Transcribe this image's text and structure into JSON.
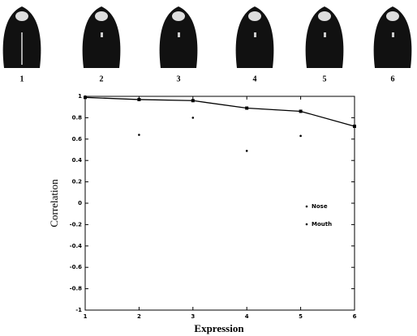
{
  "images": {
    "labels": [
      "1",
      "2",
      "3",
      "4",
      "5",
      "6"
    ]
  },
  "chart_data": {
    "type": "line",
    "xlabel": "Expression",
    "ylabel": "Correlation",
    "x": [
      1,
      2,
      3,
      4,
      5,
      6
    ],
    "series": [
      {
        "name": "Nose",
        "color": "#000000",
        "line": true,
        "marker": "square",
        "values": [
          0.99,
          0.97,
          0.96,
          0.89,
          0.86,
          0.72
        ]
      },
      {
        "name": "Mouth",
        "color": "#000000",
        "line": false,
        "marker": "dot",
        "values": [
          1.0,
          0.64,
          0.8,
          0.49,
          0.63,
          0.72
        ]
      }
    ],
    "xlim": [
      1,
      6
    ],
    "xticks": [
      1,
      2,
      3,
      4,
      5,
      6
    ],
    "ylim": [
      -1,
      1
    ],
    "yticks": [
      -1,
      -0.8,
      -0.6,
      -0.4,
      -0.2,
      0,
      0.2,
      0.4,
      0.6,
      0.8,
      1
    ],
    "grid": false,
    "legend": "right"
  }
}
